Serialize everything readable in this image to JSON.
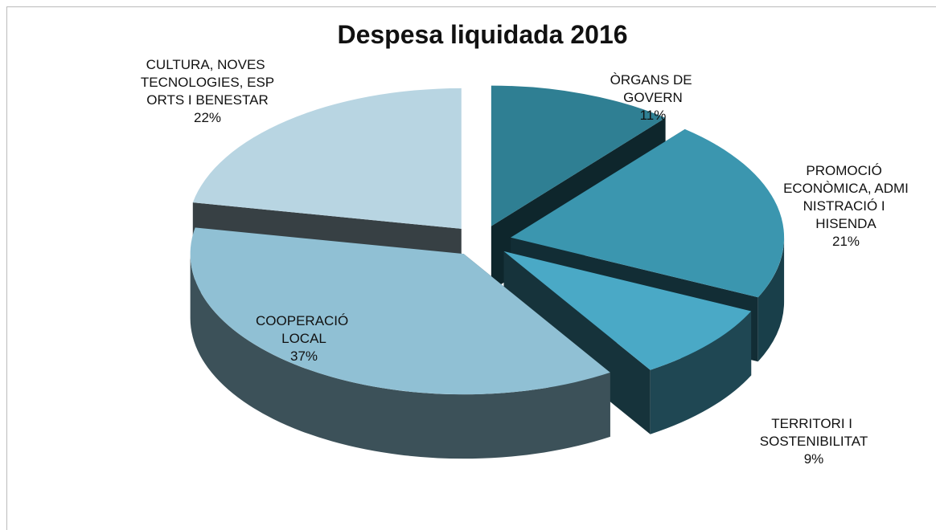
{
  "chart_data": {
    "type": "pie",
    "title": "Despesa liquidada 2016",
    "categories": [
      "ÒRGANS DE GOVERN",
      "PROMOCIÓ ECONÒMICA, ADMINISTRACIÓ I HISENDA",
      "TERRITORI I SOSTENIBILITAT",
      "COOPERACIÓ LOCAL",
      "CULTURA, NOVES TECNOLOGIES, ESPORTS I BENESTAR"
    ],
    "values": [
      11,
      21,
      9,
      37,
      22
    ],
    "value_labels": [
      "11%",
      "21%",
      "9%",
      "37%",
      "22%"
    ],
    "colors": [
      "#2f7f93",
      "#3b96af",
      "#4aa9c6",
      "#90c0d4",
      "#b8d5e2"
    ]
  }
}
